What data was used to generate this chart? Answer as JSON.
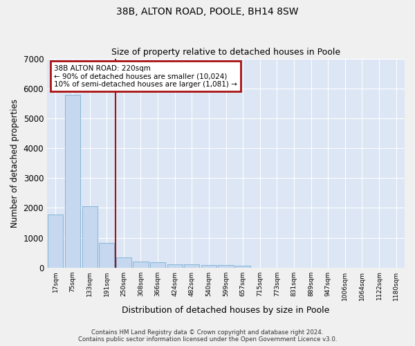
{
  "title": "38B, ALTON ROAD, POOLE, BH14 8SW",
  "subtitle": "Size of property relative to detached houses in Poole",
  "xlabel": "Distribution of detached houses by size in Poole",
  "ylabel": "Number of detached properties",
  "categories": [
    "17sqm",
    "75sqm",
    "133sqm",
    "191sqm",
    "250sqm",
    "308sqm",
    "366sqm",
    "424sqm",
    "482sqm",
    "540sqm",
    "599sqm",
    "657sqm",
    "715sqm",
    "773sqm",
    "831sqm",
    "889sqm",
    "947sqm",
    "1006sqm",
    "1064sqm",
    "1122sqm",
    "1180sqm"
  ],
  "values": [
    1780,
    5780,
    2060,
    820,
    340,
    200,
    170,
    120,
    110,
    90,
    80,
    70,
    0,
    0,
    0,
    0,
    0,
    0,
    0,
    0,
    0
  ],
  "bar_color": "#c5d8f0",
  "bar_edge_color": "#7bafd4",
  "background_color": "#dce6f4",
  "grid_color": "#ffffff",
  "vline_color": "#aa1111",
  "vline_x": 3.5,
  "annotation_text": "38B ALTON ROAD: 220sqm\n← 90% of detached houses are smaller (10,024)\n10% of semi-detached houses are larger (1,081) →",
  "annotation_box_color": "#aa1111",
  "ylim": [
    0,
    7000
  ],
  "yticks": [
    0,
    1000,
    2000,
    3000,
    4000,
    5000,
    6000,
    7000
  ],
  "footer_line1": "Contains HM Land Registry data © Crown copyright and database right 2024.",
  "footer_line2": "Contains public sector information licensed under the Open Government Licence v3.0.",
  "fig_width": 6.0,
  "fig_height": 5.0,
  "dpi": 100
}
